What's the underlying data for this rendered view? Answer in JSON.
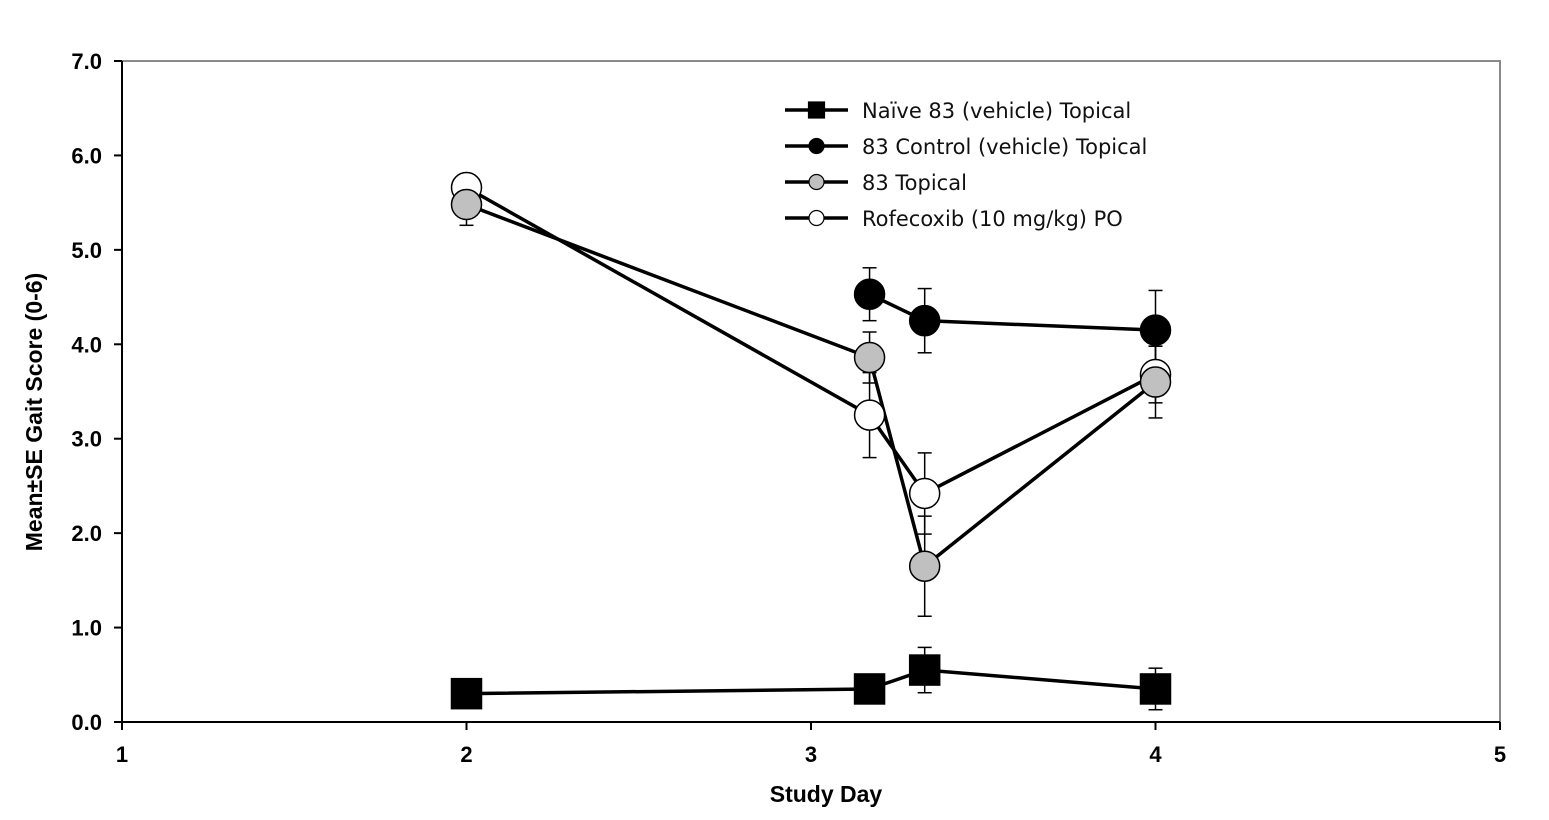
{
  "chart_data": {
    "type": "line",
    "xlabel": "Study Day",
    "ylabel": "Mean±SE Gait Score (0-6)",
    "xlim": [
      1,
      5
    ],
    "ylim": [
      0,
      7
    ],
    "x_ticks": [
      "1",
      "2",
      "3",
      "4",
      "5"
    ],
    "y_ticks": [
      "0.0",
      "1.0",
      "2.0",
      "3.0",
      "4.0",
      "5.0",
      "6.0",
      "7.0"
    ],
    "legend_position": "top-center",
    "series": [
      {
        "name": "Naïve 83 (vehicle) Topical",
        "marker": "square",
        "marker_fill": "#000000",
        "x": [
          2,
          3.17,
          3.33,
          4
        ],
        "y": [
          0.3,
          0.35,
          0.55,
          0.35
        ],
        "err": [
          0,
          0.05,
          0.24,
          0.22
        ]
      },
      {
        "name": "83 Control (vehicle) Topical",
        "marker": "circle",
        "marker_fill": "#000000",
        "x": [
          3.17,
          3.33,
          4
        ],
        "y": [
          4.53,
          4.25,
          4.15
        ],
        "err": [
          0.28,
          0.34,
          0.42
        ]
      },
      {
        "name": "83 Topical",
        "marker": "circle",
        "marker_fill": "#c0c0c0",
        "x": [
          2,
          3.17,
          3.33,
          4
        ],
        "y": [
          5.48,
          3.86,
          1.65,
          3.6
        ],
        "err": [
          0.22,
          0.27,
          0.53,
          0.38
        ]
      },
      {
        "name": "Rofecoxib (10 mg/kg) PO",
        "marker": "circle",
        "marker_fill": "#ffffff",
        "x": [
          2,
          3.17,
          3.33,
          4
        ],
        "y": [
          5.66,
          3.25,
          2.42,
          3.68
        ],
        "err": [
          0,
          0.45,
          0.43,
          0.3
        ]
      }
    ]
  }
}
